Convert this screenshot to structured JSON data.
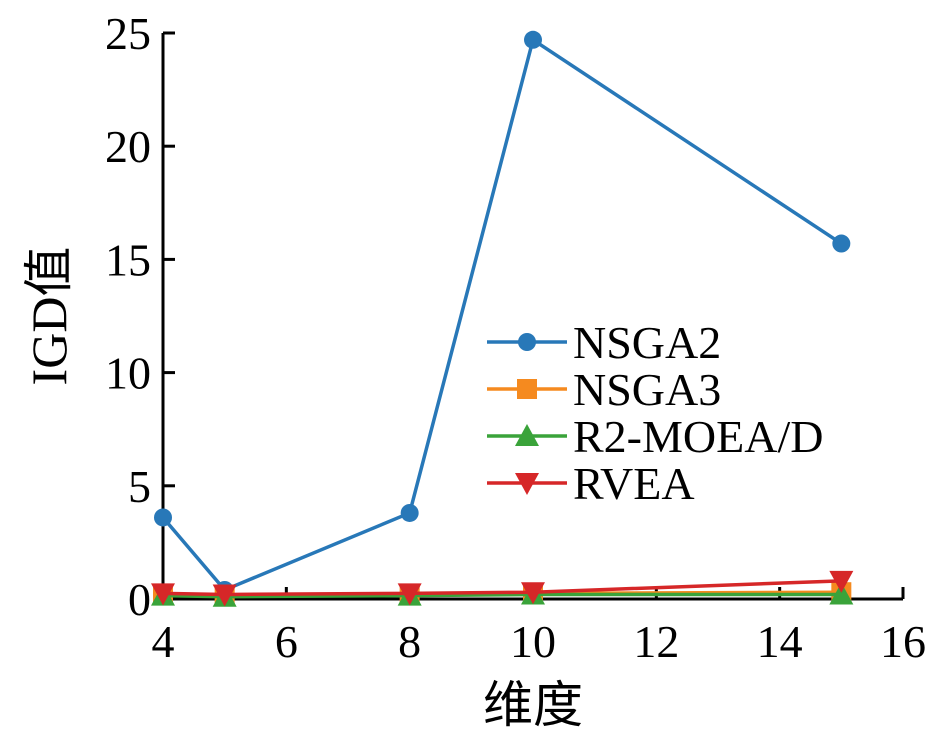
{
  "chart_data": {
    "type": "line",
    "xlabel": "维度",
    "ylabel": "IGD值",
    "xlim": [
      4,
      16
    ],
    "ylim": [
      0,
      25
    ],
    "xticks": [
      4,
      6,
      8,
      10,
      12,
      14,
      16
    ],
    "yticks": [
      0,
      5,
      10,
      15,
      20,
      25
    ],
    "x": [
      4,
      5,
      8,
      10,
      15
    ],
    "legend_position": "center-right",
    "grid": false,
    "series": [
      {
        "name": "NSGA2",
        "values": [
          3.6,
          0.4,
          3.8,
          24.7,
          15.7
        ],
        "color": "#2878b8",
        "marker": "circle"
      },
      {
        "name": "NSGA3",
        "values": [
          0.2,
          0.15,
          0.2,
          0.25,
          0.3
        ],
        "color": "#f58a1f",
        "marker": "square"
      },
      {
        "name": "R2-MOEA/D",
        "values": [
          0.15,
          0.1,
          0.15,
          0.2,
          0.2
        ],
        "color": "#3aa33a",
        "marker": "triangle-up"
      },
      {
        "name": "RVEA",
        "values": [
          0.25,
          0.2,
          0.25,
          0.3,
          0.8
        ],
        "color": "#d62728",
        "marker": "triangle-down"
      }
    ]
  }
}
